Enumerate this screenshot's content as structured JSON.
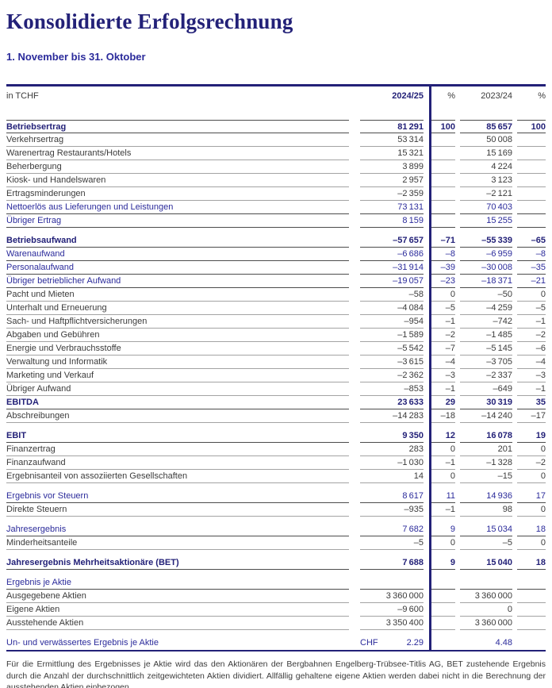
{
  "page": {
    "title": "Konsolidierte Erfolgsrechnung",
    "subtitle": "1. November bis 31. Oktober"
  },
  "colors": {
    "navy": "#232178",
    "blue_text": "#2b2b9b",
    "body_text": "#3b3b3b",
    "rule_normal": "#a3a3a3",
    "rule_strong": "#4c4c4c"
  },
  "table": {
    "unit_label": "in TCHF",
    "columns": [
      "2024/25",
      "%",
      "2023/24",
      "%"
    ],
    "rows": [
      {
        "label": "Betriebsertrag",
        "v1": "81 291",
        "p1": "100",
        "v2": "85 657",
        "p2": "100",
        "style": "section",
        "top": true
      },
      {
        "label": "Verkehrsertrag",
        "v1": "53 314",
        "p1": "",
        "v2": "50 008",
        "p2": "",
        "style": "plain"
      },
      {
        "label": "Warenertrag Restaurants/Hotels",
        "v1": "15 321",
        "p1": "",
        "v2": "15 169",
        "p2": "",
        "style": "plain"
      },
      {
        "label": "Beherbergung",
        "v1": "3 899",
        "p1": "",
        "v2": "4 224",
        "p2": "",
        "style": "plain"
      },
      {
        "label": "Kiosk- und Handelswaren",
        "v1": "2 957",
        "p1": "",
        "v2": "3 123",
        "p2": "",
        "style": "plain"
      },
      {
        "label": "Ertragsminderungen",
        "v1": "–2 359",
        "p1": "",
        "v2": "–2 121",
        "p2": "",
        "style": "plain"
      },
      {
        "label": "Nettoerlös aus Lieferungen und Leistungen",
        "v1": "73 131",
        "p1": "",
        "v2": "70 403",
        "p2": "",
        "style": "blue"
      },
      {
        "label": "Übriger Ertrag",
        "v1": "8 159",
        "p1": "",
        "v2": "15 255",
        "p2": "",
        "style": "blue"
      },
      {
        "label": "Betriebsaufwand",
        "v1": "–57 657",
        "p1": "–71",
        "v2": "–55 339",
        "p2": "–65",
        "style": "section",
        "gap": true
      },
      {
        "label": "Warenaufwand",
        "v1": "–6 686",
        "p1": "–8",
        "v2": "–6 959",
        "p2": "–8",
        "style": "blue"
      },
      {
        "label": "Personalaufwand",
        "v1": "–31 914",
        "p1": "–39",
        "v2": "–30 008",
        "p2": "–35",
        "style": "blue"
      },
      {
        "label": "Übriger betrieblicher Aufwand",
        "v1": "–19 057",
        "p1": "–23",
        "v2": "–18 371",
        "p2": "–21",
        "style": "blue"
      },
      {
        "label": "Pacht und Mieten",
        "v1": "–58",
        "p1": "0",
        "v2": "–50",
        "p2": "0",
        "style": "plain"
      },
      {
        "label": "Unterhalt und Erneuerung",
        "v1": "–4 084",
        "p1": "–5",
        "v2": "–4 259",
        "p2": "–5",
        "style": "plain"
      },
      {
        "label": "Sach- und Haftpflichtversicherungen",
        "v1": "–954",
        "p1": "–1",
        "v2": "–742",
        "p2": "–1",
        "style": "plain"
      },
      {
        "label": "Abgaben und Gebühren",
        "v1": "–1 589",
        "p1": "–2",
        "v2": "–1 485",
        "p2": "–2",
        "style": "plain"
      },
      {
        "label": "Energie und Verbrauchsstoffe",
        "v1": "–5 542",
        "p1": "–7",
        "v2": "–5 145",
        "p2": "–6",
        "style": "plain"
      },
      {
        "label": "Verwaltung und Informatik",
        "v1": "–3 615",
        "p1": "–4",
        "v2": "–3 705",
        "p2": "–4",
        "style": "plain"
      },
      {
        "label": "Marketing und Verkauf",
        "v1": "–2 362",
        "p1": "–3",
        "v2": "–2 337",
        "p2": "–3",
        "style": "plain"
      },
      {
        "label": "Übriger Aufwand",
        "v1": "–853",
        "p1": "–1",
        "v2": "–649",
        "p2": "–1",
        "style": "plain"
      },
      {
        "label": "EBITDA",
        "v1": "23 633",
        "p1": "29",
        "v2": "30 319",
        "p2": "35",
        "style": "section"
      },
      {
        "label": "Abschreibungen",
        "v1": "–14 283",
        "p1": "–18",
        "v2": "–14 240",
        "p2": "–17",
        "style": "plain"
      },
      {
        "label": "EBIT",
        "v1": "9 350",
        "p1": "12",
        "v2": "16 078",
        "p2": "19",
        "style": "section",
        "gap": true
      },
      {
        "label": "Finanzertrag",
        "v1": "283",
        "p1": "0",
        "v2": "201",
        "p2": "0",
        "style": "plain"
      },
      {
        "label": "Finanzaufwand",
        "v1": "–1 030",
        "p1": "–1",
        "v2": "–1 328",
        "p2": "–2",
        "style": "plain"
      },
      {
        "label": "Ergebnisanteil von assoziierten Gesellschaften",
        "v1": "14",
        "p1": "0",
        "v2": "–15",
        "p2": "0",
        "style": "plain"
      },
      {
        "label": "Ergebnis vor Steuern",
        "v1": "8 617",
        "p1": "11",
        "v2": "14 936",
        "p2": "17",
        "style": "blue",
        "gap": true
      },
      {
        "label": "Direkte Steuern",
        "v1": "–935",
        "p1": "–1",
        "v2": "98",
        "p2": "0",
        "style": "plain"
      },
      {
        "label": "Jahresergebnis",
        "v1": "7 682",
        "p1": "9",
        "v2": "15 034",
        "p2": "18",
        "style": "blue",
        "gap": true
      },
      {
        "label": "Minderheitsanteile",
        "v1": "–5",
        "p1": "0",
        "v2": "–5",
        "p2": "0",
        "style": "plain"
      },
      {
        "label": "Jahresergebnis Mehrheitsaktionäre (BET)",
        "v1": "7 688",
        "p1": "9",
        "v2": "15 040",
        "p2": "18",
        "style": "section",
        "gap": true
      },
      {
        "label": "Ergebnis je Aktie",
        "v1": "",
        "p1": "",
        "v2": "",
        "p2": "",
        "style": "blue",
        "gap": true
      },
      {
        "label": "Ausgegebene Aktien",
        "v1": "3 360 000",
        "p1": "",
        "v2": "3 360 000",
        "p2": "",
        "style": "plain"
      },
      {
        "label": "Eigene Aktien",
        "v1": "–9 600",
        "p1": "",
        "v2": "0",
        "p2": "",
        "style": "plain"
      },
      {
        "label": "Ausstehende Aktien",
        "v1": "3 350 400",
        "p1": "",
        "v2": "3 360 000",
        "p2": "",
        "style": "plain"
      },
      {
        "label": "Un- und verwässertes Ergebnis je Aktie",
        "unit": "CHF",
        "v1": "2.29",
        "p1": "",
        "v2": "4.48",
        "p2": "",
        "style": "blue",
        "gap": true,
        "thick": true
      }
    ],
    "footnote": "Für die Ermittlung des Ergebnisses je Aktie wird das den Aktionären der Bergbahnen Engelberg-Trübsee-Titlis AG, BET zustehende Ergebnis durch die Anzahl der durchschnittlich zeitgewichteten Aktien dividiert. Allfällig gehaltene eigene Aktien werden dabei nicht in die Berechnung der ausstehenden Aktien einbezogen."
  }
}
